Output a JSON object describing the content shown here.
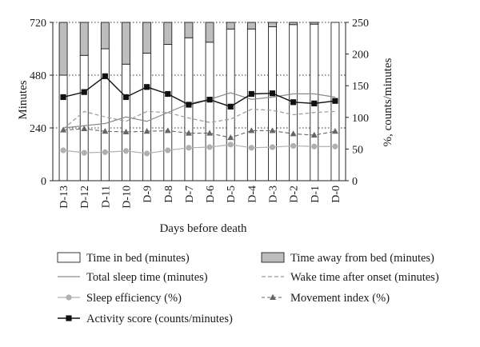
{
  "chart_data": {
    "type": "bar+line",
    "categories": [
      "D-13",
      "D-12",
      "D-11",
      "D-10",
      "D-9",
      "D-8",
      "D-7",
      "D-6",
      "D-5",
      "D-4",
      "D-3",
      "D-2",
      "D-1",
      "D-0"
    ],
    "xlabel": "Days before death",
    "ylabel_left": "Minutes",
    "ylabel_right": "%, counts/minutes",
    "ylim_left": [
      0,
      720
    ],
    "yticks_left": [
      0,
      240,
      480,
      720
    ],
    "ylim_right": [
      0,
      250
    ],
    "yticks_right": [
      0,
      50,
      100,
      150,
      200,
      250
    ],
    "grid": "horizontal dotted at left ticks",
    "legend_position": "bottom",
    "bar_series": [
      {
        "name": "Time in bed (minutes)",
        "axis": "left",
        "color": "#ffffff",
        "values": [
          480,
          570,
          600,
          530,
          580,
          620,
          650,
          630,
          690,
          690,
          700,
          710,
          712,
          720
        ]
      },
      {
        "name": "Time away from bed (minutes)",
        "axis": "left",
        "color": "#bdbdbd",
        "values": [
          240,
          150,
          120,
          190,
          140,
          100,
          70,
          90,
          30,
          30,
          20,
          10,
          8,
          0
        ]
      }
    ],
    "line_series": [
      {
        "name": "Total sleep time (minutes)",
        "axis": "left",
        "style": "solid-gray",
        "values": [
          240,
          250,
          260,
          290,
          270,
          310,
          350,
          370,
          400,
          370,
          380,
          395,
          395,
          380
        ]
      },
      {
        "name": "Wake time after onset (minutes)",
        "axis": "left",
        "style": "dashed-gray",
        "values": [
          235,
          315,
          290,
          270,
          315,
          310,
          285,
          265,
          280,
          325,
          320,
          300,
          310,
          315
        ]
      },
      {
        "name": "Sleep efficiency (%)",
        "axis": "right",
        "style": "gray-circle",
        "values": [
          48,
          44,
          45,
          47,
          43,
          48,
          52,
          53,
          57,
          52,
          53,
          55,
          54,
          54
        ]
      },
      {
        "name": "Movement index (%)",
        "axis": "right",
        "style": "dashed-triangle",
        "values": [
          80,
          82,
          78,
          77,
          78,
          79,
          75,
          75,
          68,
          79,
          79,
          74,
          72,
          78
        ]
      },
      {
        "name": "Activity score (counts/minutes)",
        "axis": "right",
        "style": "black-square",
        "values": [
          132,
          140,
          165,
          132,
          148,
          137,
          120,
          128,
          117,
          137,
          138,
          124,
          122,
          126
        ]
      }
    ],
    "legend": [
      "Time in bed (minutes)",
      "Time away from bed (minutes)",
      "Total sleep time (minutes)",
      "Wake time after onset (minutes)",
      "Sleep efficiency (%)",
      "Movement index (%)",
      "Activity score (counts/minutes)"
    ]
  }
}
